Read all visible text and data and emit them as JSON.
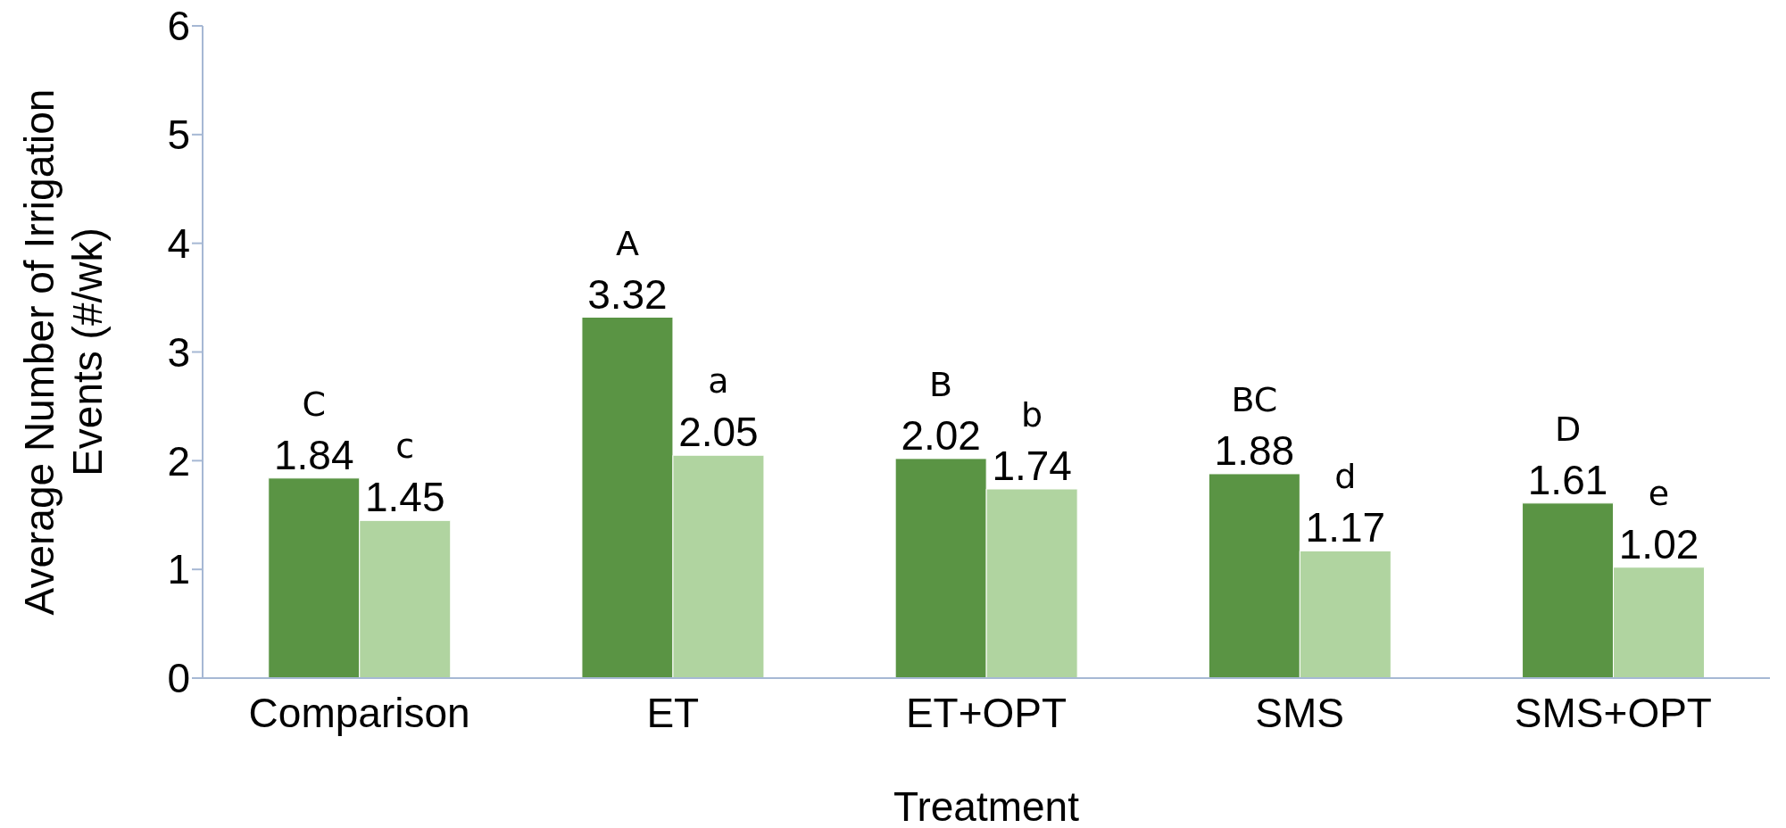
{
  "chart_data": {
    "type": "bar",
    "xlabel": "Treatment",
    "ylabel": "Average Number of Irrigation Events (#/wk)",
    "categories": [
      "Comparison",
      "ET",
      "ET+OPT",
      "SMS",
      "SMS+OPT"
    ],
    "series": [
      {
        "color": "#5a9444",
        "values": [
          1.84,
          3.32,
          2.02,
          1.88,
          1.61
        ]
      },
      {
        "color": "#b0d4a0",
        "values": [
          1.45,
          2.05,
          1.74,
          1.17,
          1.02
        ]
      }
    ],
    "ylim": [
      0,
      6
    ],
    "yticks": [
      0,
      1,
      2,
      3,
      4,
      5,
      6
    ],
    "data_labels": true,
    "annotations": [
      {
        "text": "C",
        "x": "Comparison",
        "y": 1.84
      },
      {
        "text": "c",
        "x": "Comparison",
        "y": 1.45
      },
      {
        "text": "A",
        "x": "ET",
        "y": 3.32
      },
      {
        "text": "a",
        "x": "ET",
        "y": 2.05
      },
      {
        "text": "B",
        "x": "ET+OPT",
        "y": 2.02
      },
      {
        "text": "b",
        "x": "ET+OPT",
        "y": 1.74
      },
      {
        "text": "BC",
        "x": "SMS",
        "y": 1.88
      },
      {
        "text": "d",
        "x": "SMS",
        "y": 1.17
      },
      {
        "text": "D",
        "x": "SMS+OPT",
        "y": 1.61
      },
      {
        "text": "e",
        "x": "SMS+OPT",
        "y": 1.02
      }
    ]
  }
}
